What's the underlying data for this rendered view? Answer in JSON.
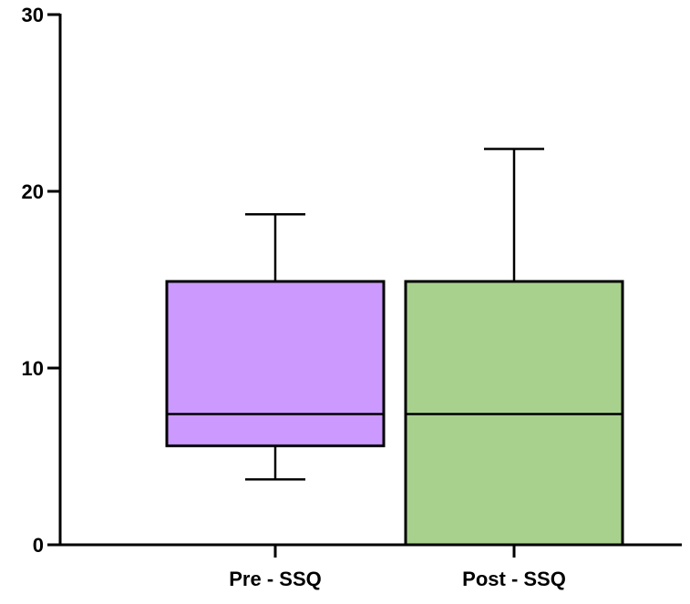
{
  "chart_data": {
    "type": "box",
    "title": "",
    "xlabel": "",
    "ylabel": "",
    "ylim": [
      0,
      30
    ],
    "yticks": [
      0,
      10,
      20,
      30
    ],
    "ytick_labels": [
      "0",
      "10",
      "20",
      "30"
    ],
    "grid": false,
    "legend": "none",
    "categories": [
      "Pre - SSQ",
      "Post - SSQ"
    ],
    "series": [
      {
        "min": 3.7,
        "q1": 5.6,
        "median": 7.4,
        "q3": 14.9,
        "max": 18.7,
        "color": "#cc99ff"
      },
      {
        "min": 0,
        "q1": 0,
        "median": 7.4,
        "q3": 14.9,
        "max": 22.4,
        "color": "#a9d18e"
      }
    ]
  }
}
